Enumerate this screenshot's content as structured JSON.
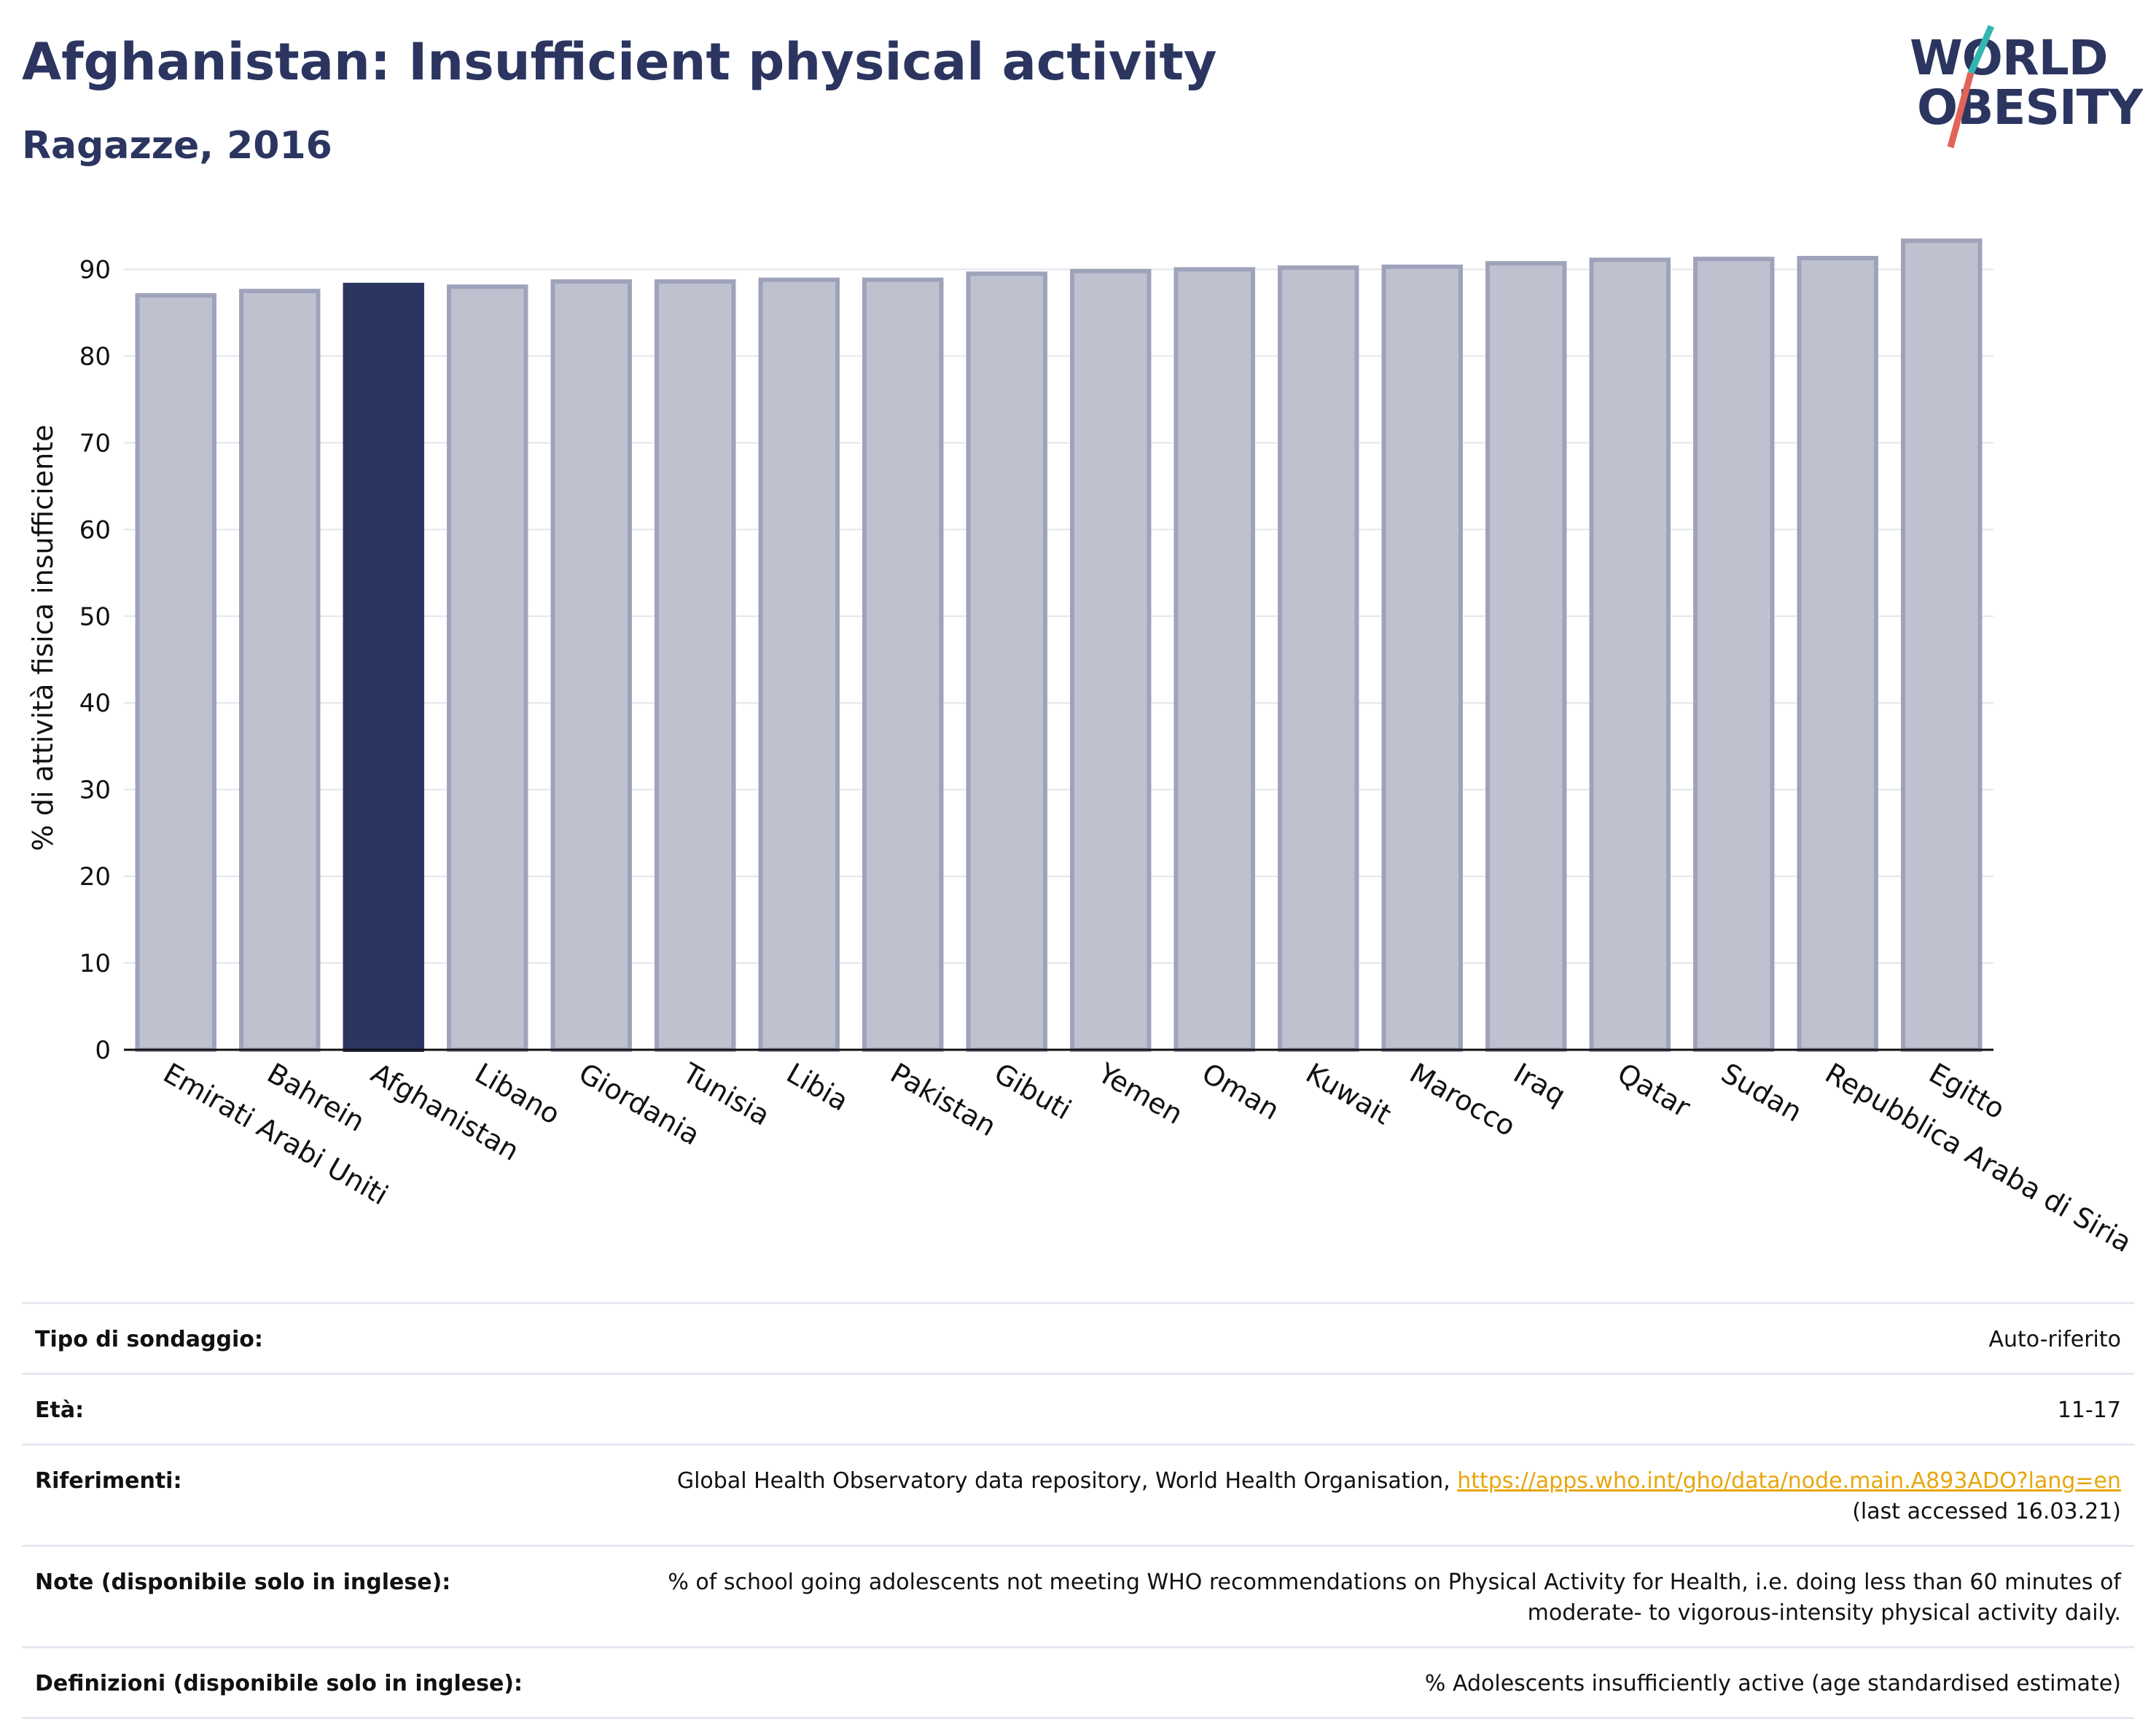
{
  "header": {
    "title": "Afghanistan: Insufficient physical activity",
    "subtitle": "Ragazze, 2016"
  },
  "logo": {
    "line1": "WORLD",
    "line2": "OBESITY"
  },
  "colors": {
    "highlight": "#2b3560",
    "bar_fill": "#bfc2ce",
    "bar_stroke": "#9ea3bb",
    "logo_teal": "#34b6b0",
    "logo_red": "#e2635a"
  },
  "chart_data": {
    "type": "bar",
    "ylabel": "% di attività fisica insufficiente",
    "ylim": [
      0,
      95
    ],
    "yticks": [
      0,
      10,
      20,
      30,
      40,
      50,
      60,
      70,
      80,
      90
    ],
    "grid": true,
    "highlight": "Afghanistan",
    "categories": [
      "Emirati Arabi Uniti",
      "Bahrein",
      "Afghanistan",
      "Libano",
      "Giordania",
      "Tunisia",
      "Libia",
      "Pakistan",
      "Gibuti",
      "Yemen",
      "Oman",
      "Kuwait",
      "Marocco",
      "Iraq",
      "Qatar",
      "Sudan",
      "Repubblica Araba di Siria",
      "Egitto"
    ],
    "values": [
      87.0,
      87.5,
      88.2,
      88.0,
      88.6,
      88.6,
      88.8,
      88.8,
      89.5,
      89.8,
      90.0,
      90.2,
      90.3,
      90.7,
      91.1,
      91.2,
      91.3,
      93.3
    ]
  },
  "meta": [
    {
      "label": "Tipo di sondaggio:",
      "value": "Auto-riferito"
    },
    {
      "label": "Età:",
      "value": "11-17"
    },
    {
      "label": "Riferimenti:",
      "value": "Global Health Observatory data repository, World Health Organisation, ",
      "link": "https://apps.who.int/gho/data/node.main.A893ADO?lang=en",
      "value2": "(last accessed 16.03.21)"
    },
    {
      "label": "Note (disponibile solo in inglese):",
      "value": "% of school going adolescents not meeting WHO recommendations on Physical Activity for Health, i.e. doing less than 60 minutes of",
      "value2": "moderate- to vigorous-intensity physical activity daily."
    },
    {
      "label": "Definizioni (disponibile solo in inglese):",
      "value": "% Adolescents insufficiently active (age standardised estimate)"
    }
  ]
}
